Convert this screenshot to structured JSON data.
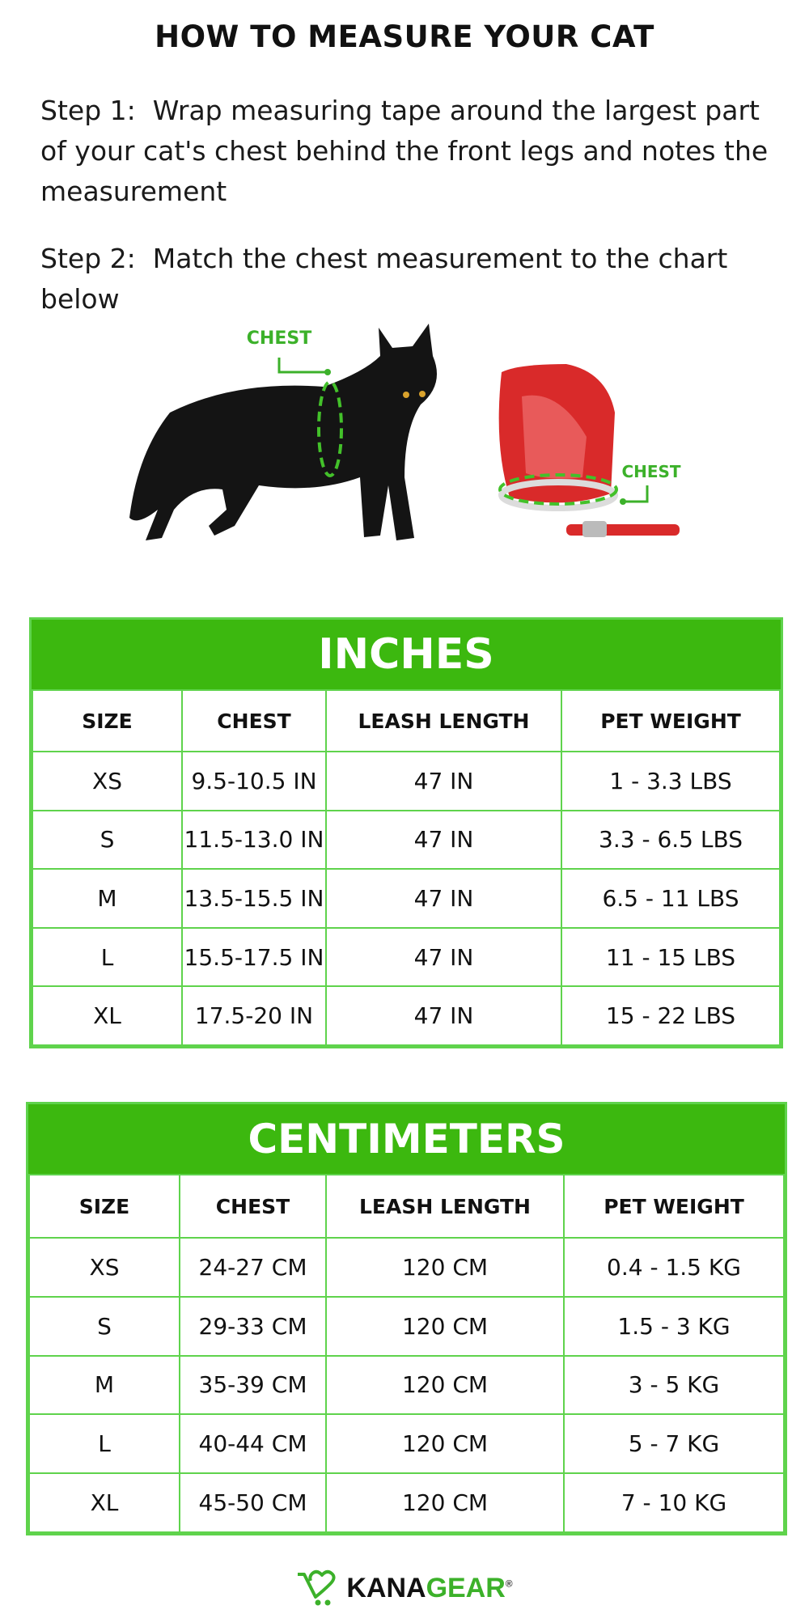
{
  "title": "HOW TO MEASURE YOUR CAT",
  "steps": [
    {
      "label": "Step 1:",
      "text": "Wrap measuring tape around the largest part of your cat's chest behind the front legs and notes the measurement"
    },
    {
      "label": "Step 2:",
      "text": "Match the chest measurement to the chart below"
    }
  ],
  "illustration": {
    "cat_label": "CHEST",
    "harness_label": "CHEST"
  },
  "colors": {
    "green": "#3cb80f",
    "border": "#5fd34c",
    "label_green": "#3cb12a"
  },
  "inches": {
    "title": "INCHES",
    "headers": [
      "SIZE",
      "CHEST",
      "LEASH LENGTH",
      "PET WEIGHT"
    ],
    "rows": [
      [
        "XS",
        "9.5-10.5 IN",
        "47 IN",
        "1 - 3.3 LBS"
      ],
      [
        "S",
        "11.5-13.0 IN",
        "47 IN",
        "3.3 - 6.5 LBS"
      ],
      [
        "M",
        "13.5-15.5 IN",
        "47 IN",
        "6.5 - 11 LBS"
      ],
      [
        "L",
        "15.5-17.5 IN",
        "47 IN",
        "11 - 15 LBS"
      ],
      [
        "XL",
        "17.5-20 IN",
        "47 IN",
        "15 - 22 LBS"
      ]
    ]
  },
  "centimeters": {
    "title": "CENTIMETERS",
    "headers": [
      "SIZE",
      "CHEST",
      "LEASH LENGTH",
      "PET WEIGHT"
    ],
    "rows": [
      [
        "XS",
        "24-27 CM",
        "120 CM",
        "0.4 - 1.5 KG"
      ],
      [
        "S",
        "29-33 CM",
        "120 CM",
        "1.5 - 3 KG"
      ],
      [
        "M",
        "35-39 CM",
        "120 CM",
        "3 - 5 KG"
      ],
      [
        "L",
        "40-44 CM",
        "120 CM",
        "5 - 7 KG"
      ],
      [
        "XL",
        "45-50 CM",
        "120 CM",
        "7 - 10 KG"
      ]
    ]
  },
  "logo": {
    "part1": "KANA",
    "part2": "GEAR",
    "mark": "®"
  }
}
